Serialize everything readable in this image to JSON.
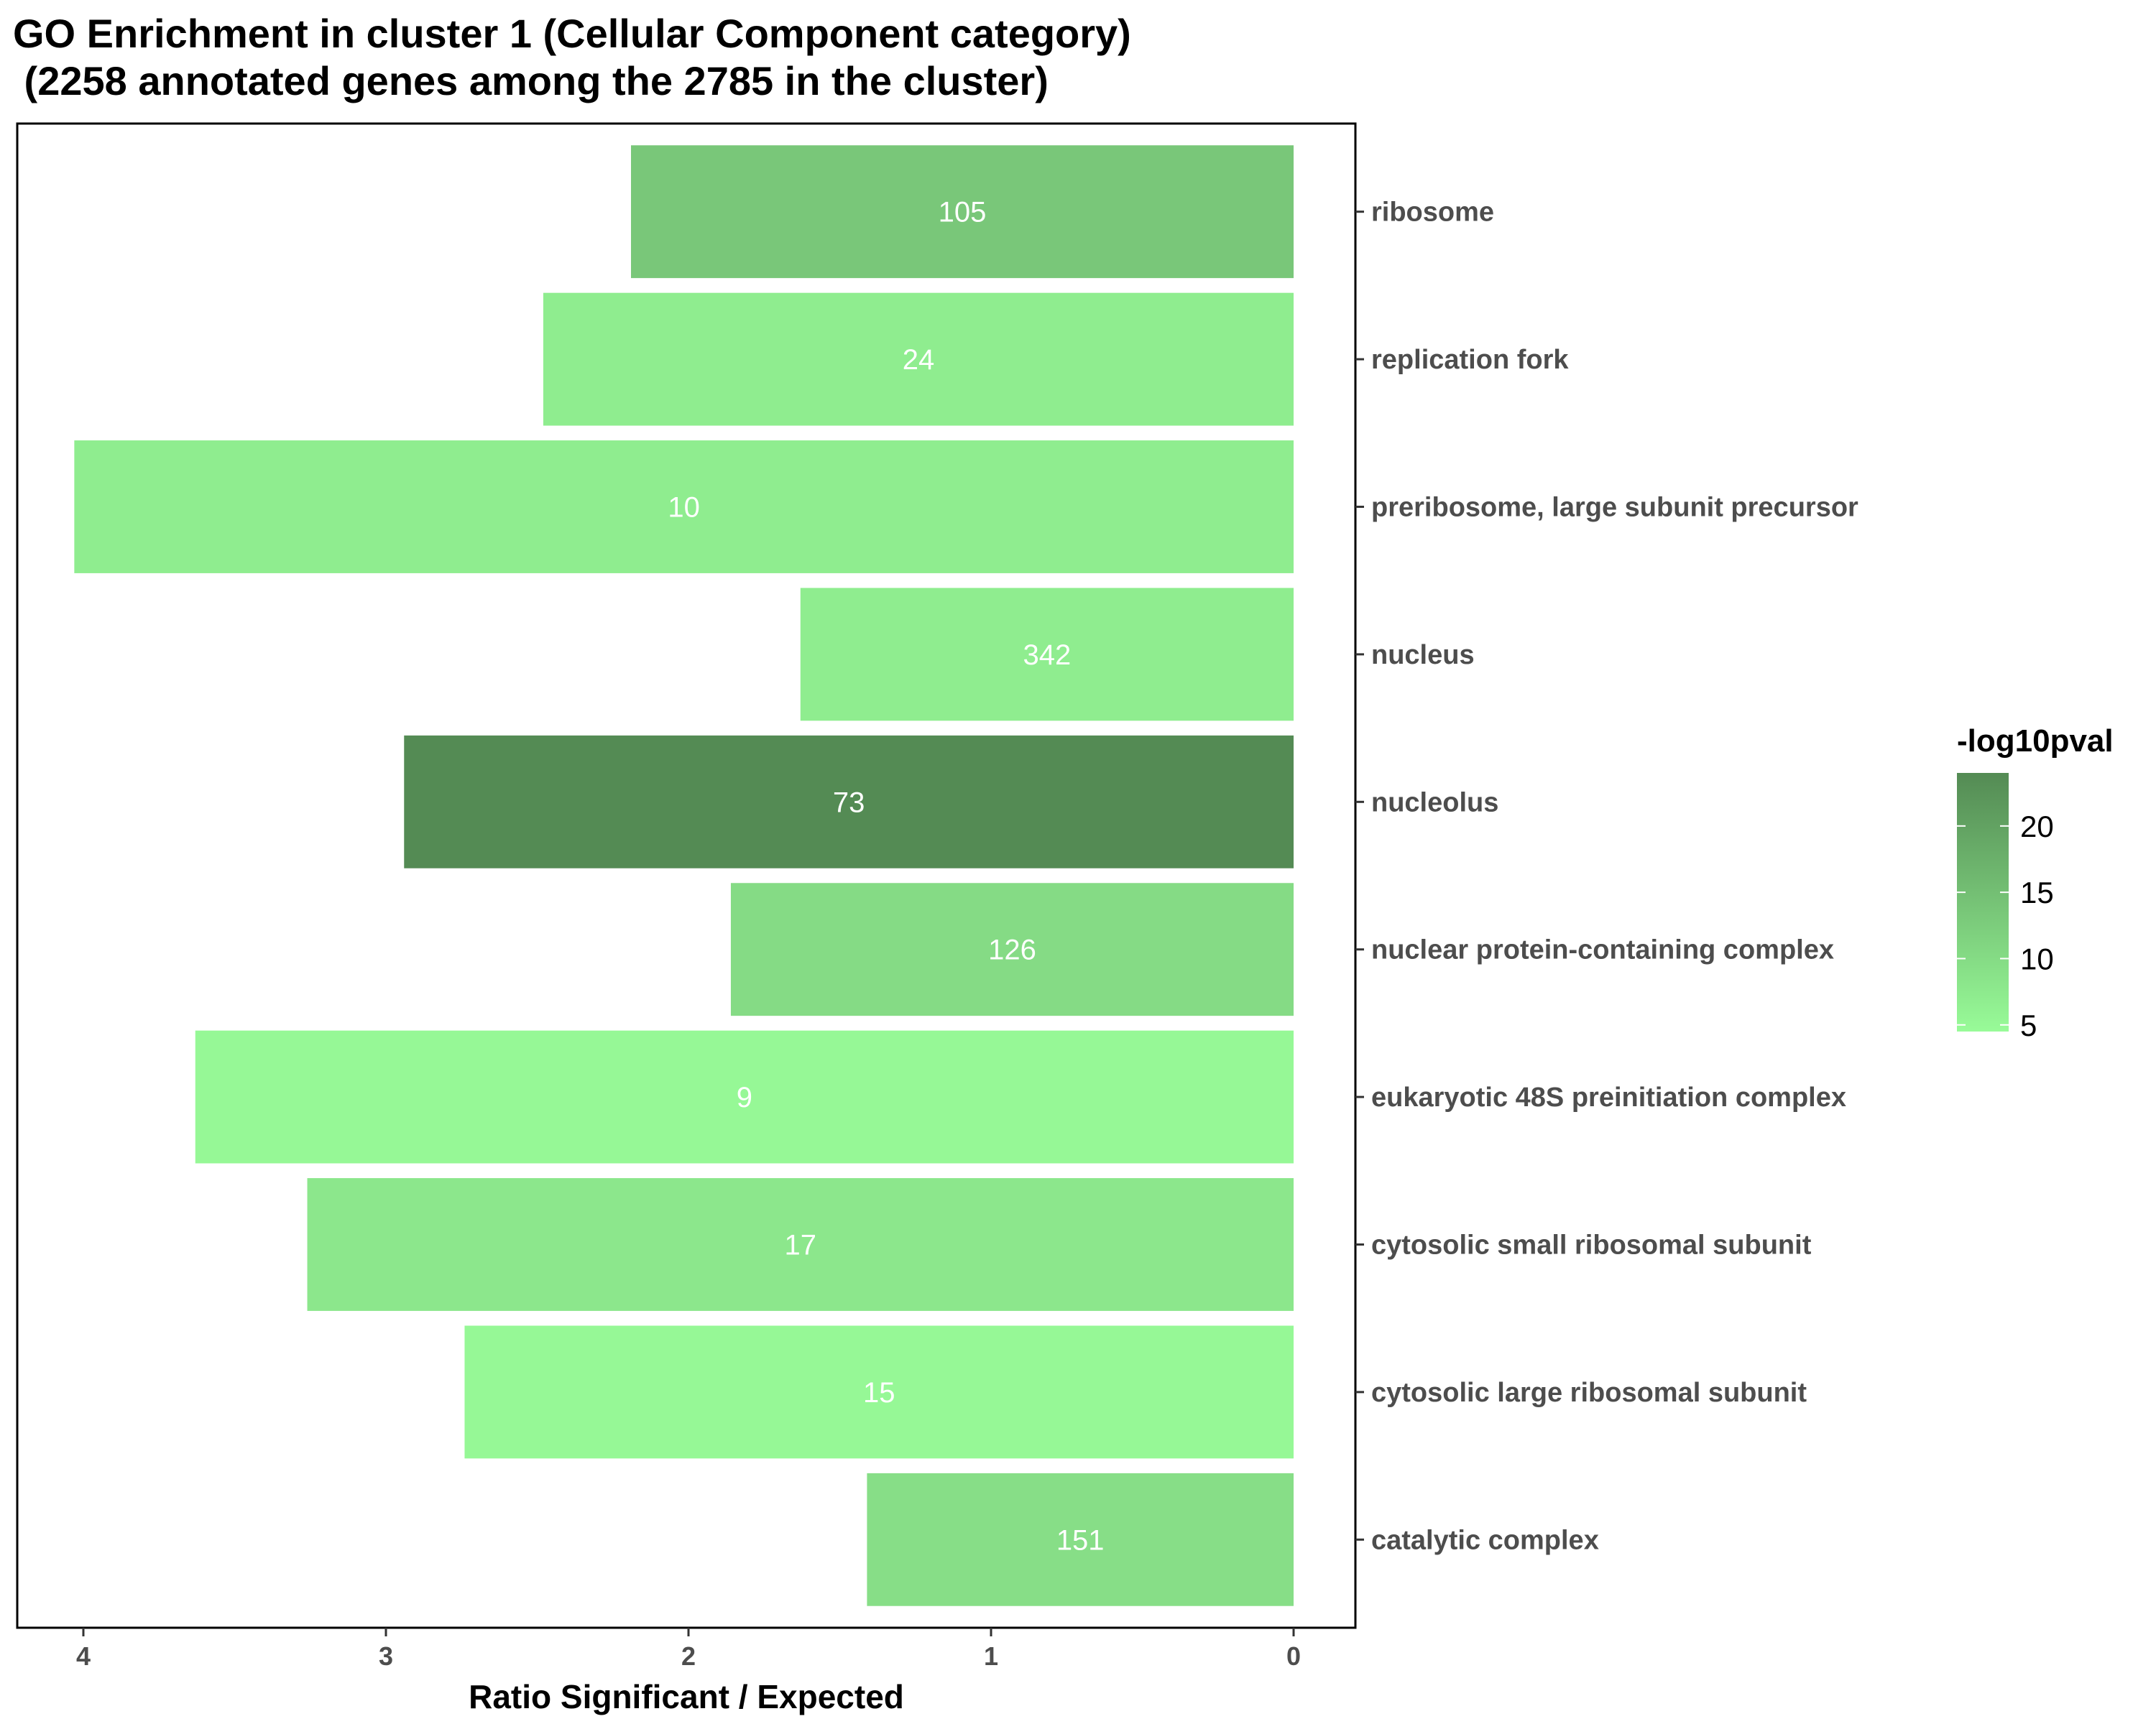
{
  "chart_data": {
    "type": "bar",
    "orientation": "horizontal",
    "title_line1": "GO Enrichment in cluster 1 (Cellular Component category)",
    "title_line2": " (2258 annotated genes among the 2785 in the cluster)",
    "xlabel": "Ratio Significant / Expected",
    "ylabel": "",
    "x_reversed": true,
    "xlim": [
      0,
      4.2
    ],
    "x_ticks": [
      4,
      3,
      2,
      1,
      0
    ],
    "categories": [
      "ribosome",
      "replication fork",
      "preribosome, large subunit precursor",
      "nucleus",
      "nucleolus",
      "nuclear protein-containing complex",
      "eukaryotic 48S preinitiation complex",
      "cytosolic small ribosomal subunit",
      "cytosolic large ribosomal subunit",
      "catalytic complex"
    ],
    "values": [
      2.19,
      2.48,
      4.03,
      1.63,
      2.94,
      1.86,
      3.63,
      3.26,
      2.74,
      1.41
    ],
    "counts": [
      105,
      24,
      10,
      342,
      73,
      126,
      9,
      17,
      15,
      151
    ],
    "color_values": [
      13.5,
      7,
      7,
      7,
      24,
      10,
      5,
      8,
      5,
      9.5
    ],
    "legend": {
      "title": "-log10pval",
      "ticks": [
        5,
        10,
        15,
        20
      ],
      "range": [
        4.5,
        24
      ],
      "low_color": "#98fb98",
      "high_color": "#548b54",
      "placement": "right"
    },
    "grid": false
  }
}
